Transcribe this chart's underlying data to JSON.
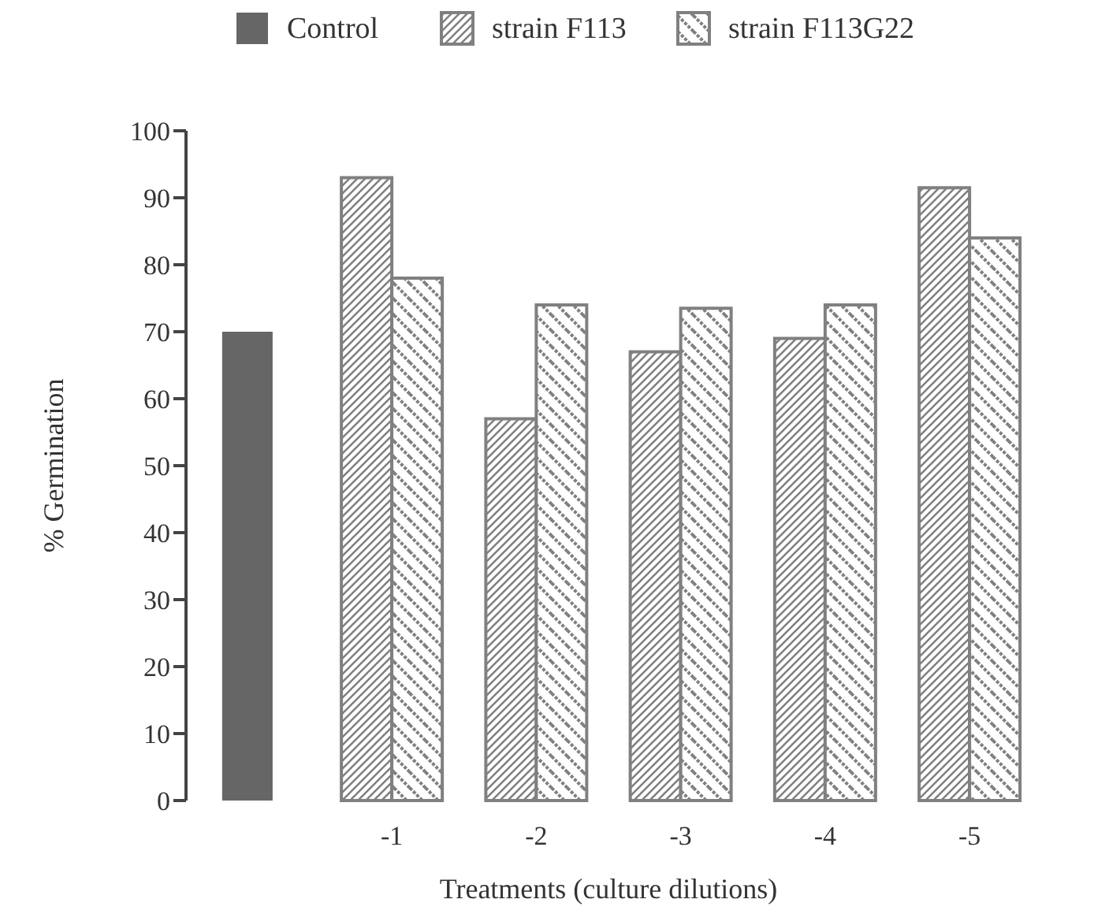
{
  "chart_data": {
    "type": "bar",
    "xlabel": "Treatments (culture dilutions)",
    "ylabel": "% Germination",
    "categories": [
      null,
      "-1",
      "-2",
      "-3",
      "-4",
      "-5"
    ],
    "series": [
      {
        "name": "Control",
        "color": "#666666",
        "values": [
          70,
          null,
          null,
          null,
          null,
          null
        ]
      },
      {
        "name": "strain F113",
        "color": "#808080",
        "values": [
          null,
          93,
          57,
          67,
          69,
          91.5
        ]
      },
      {
        "name": "strain F113G22",
        "color": "#808080",
        "values": [
          null,
          78,
          74,
          73.5,
          74,
          84
        ]
      }
    ],
    "ylim": [
      0,
      100
    ],
    "yticks": [
      0,
      10,
      20,
      30,
      40,
      50,
      60,
      70,
      80,
      90,
      100
    ],
    "legend": "top",
    "grid": false
  }
}
